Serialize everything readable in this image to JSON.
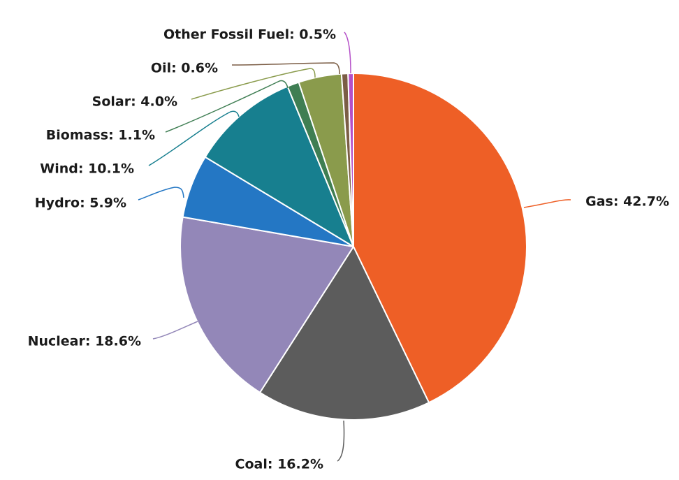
{
  "chart_data": {
    "type": "pie",
    "title": "",
    "slices": [
      {
        "name": "Gas",
        "value": 42.7,
        "label": "Gas: 42.7%",
        "color": "#ee5f26"
      },
      {
        "name": "Coal",
        "value": 16.2,
        "label": "Coal: 16.2%",
        "color": "#5c5c5c"
      },
      {
        "name": "Nuclear",
        "value": 18.6,
        "label": "Nuclear: 18.6%",
        "color": "#9387b8"
      },
      {
        "name": "Hydro",
        "value": 5.9,
        "label": "Hydro: 5.9%",
        "color": "#2477c4"
      },
      {
        "name": "Wind",
        "value": 10.1,
        "label": "Wind: 10.1%",
        "color": "#177f8f"
      },
      {
        "name": "Biomass",
        "value": 1.1,
        "label": "Biomass: 1.1%",
        "color": "#3f7e53"
      },
      {
        "name": "Solar",
        "value": 4.0,
        "label": "Solar: 4.0%",
        "color": "#8a9b4c"
      },
      {
        "name": "Oil",
        "value": 0.6,
        "label": "Oil: 0.6%",
        "color": "#7b5d45"
      },
      {
        "name": "Other Fossil Fuel",
        "value": 0.5,
        "label": "Other Fossil Fuel: 0.5%",
        "color": "#b550c8"
      }
    ],
    "start_angle": "top",
    "direction": "clockwise",
    "legend": "none",
    "labels": "outside with leader lines"
  }
}
